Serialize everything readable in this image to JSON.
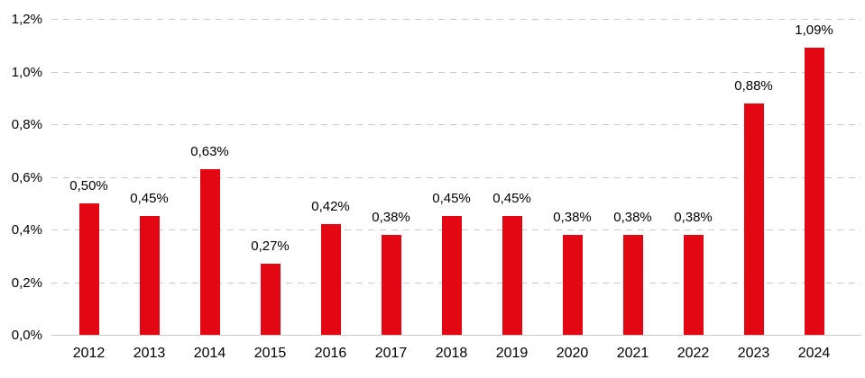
{
  "chart_data": {
    "type": "bar",
    "title": "",
    "categories": [
      "2012",
      "2013",
      "2014",
      "2015",
      "2016",
      "2017",
      "2018",
      "2019",
      "2020",
      "2021",
      "2022",
      "2023",
      "2024"
    ],
    "values": [
      0.5,
      0.45,
      0.63,
      0.27,
      0.42,
      0.38,
      0.45,
      0.45,
      0.38,
      0.38,
      0.38,
      0.88,
      1.09
    ],
    "value_labels": [
      "0,50%",
      "0,45%",
      "0,63%",
      "0,27%",
      "0,42%",
      "0,38%",
      "0,45%",
      "0,45%",
      "0,38%",
      "0,38%",
      "0,38%",
      "0,88%",
      "1,09%"
    ],
    "xlabel": "",
    "ylabel": "",
    "ylim": [
      0,
      1.2
    ],
    "yticks": [
      {
        "value": 0.0,
        "label": "0,0%"
      },
      {
        "value": 0.2,
        "label": "0,2%"
      },
      {
        "value": 0.4,
        "label": "0,4%"
      },
      {
        "value": 0.6,
        "label": "0,6%"
      },
      {
        "value": 0.8,
        "label": "0,8%"
      },
      {
        "value": 1.0,
        "label": "1,0%"
      },
      {
        "value": 1.2,
        "label": "1,2%"
      }
    ],
    "grid": "horizontal-dashed",
    "legend": "none",
    "number_format": "comma-decimal",
    "colors": {
      "bar": "#e30613",
      "value_label": "#000000",
      "tick_label": "#000000",
      "gridline": "#c9c9c9",
      "axis_line": "#c9c9c9",
      "background": "#ffffff"
    }
  }
}
